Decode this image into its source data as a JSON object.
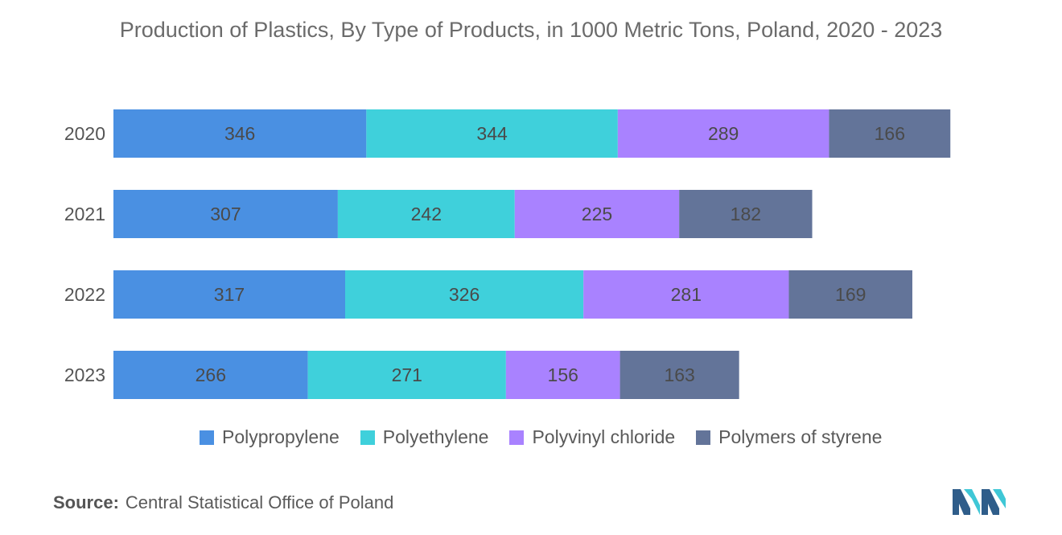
{
  "chart_data": {
    "type": "bar",
    "orientation": "horizontal",
    "stacked": true,
    "title": "Production of Plastics, By Type of Products, in 1000 Metric Tons, Poland, 2020 - 2023",
    "categories": [
      "2020",
      "2021",
      "2022",
      "2023"
    ],
    "series": [
      {
        "name": "Polypropylene",
        "color": "#4a90e2",
        "values": [
          346,
          307,
          317,
          266
        ]
      },
      {
        "name": "Polyethylene",
        "color": "#3fd0db",
        "values": [
          344,
          242,
          326,
          271
        ]
      },
      {
        "name": "Polyvinyl chloride",
        "color": "#a982ff",
        "values": [
          289,
          225,
          281,
          156
        ]
      },
      {
        "name": "Polymers of styrene",
        "color": "#637499",
        "values": [
          166,
          182,
          169,
          163
        ]
      }
    ],
    "legend_position": "bottom",
    "grid": false
  },
  "source": {
    "label": "Source:",
    "text": "Central Statistical Office of Poland"
  }
}
